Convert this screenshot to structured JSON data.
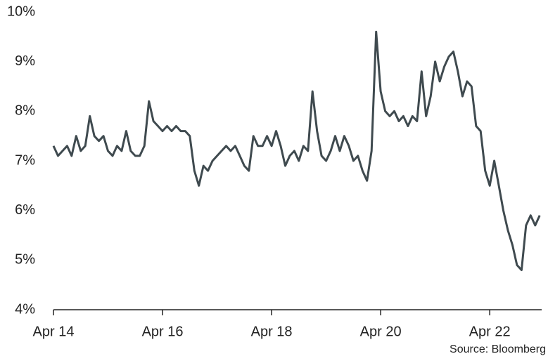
{
  "chart_data": {
    "type": "line",
    "categories": [
      "Apr 14",
      null,
      null,
      null,
      null,
      null,
      null,
      null,
      null,
      null,
      null,
      null,
      null,
      null,
      null,
      null,
      null,
      null,
      null,
      null,
      null,
      null,
      null,
      null,
      "Apr 16",
      null,
      null,
      null,
      null,
      null,
      null,
      null,
      null,
      null,
      null,
      null,
      null,
      null,
      null,
      null,
      null,
      null,
      null,
      null,
      null,
      null,
      null,
      null,
      "Apr 18",
      null,
      null,
      null,
      null,
      null,
      null,
      null,
      null,
      null,
      null,
      null,
      null,
      null,
      null,
      null,
      null,
      null,
      null,
      null,
      null,
      null,
      null,
      null,
      "Apr 20",
      null,
      null,
      null,
      null,
      null,
      null,
      null,
      null,
      null,
      null,
      null,
      null,
      null,
      null,
      null,
      null,
      null,
      null,
      null,
      null,
      null,
      null,
      null,
      "Apr 22",
      null,
      null,
      null,
      null,
      null,
      null,
      null,
      null,
      null,
      null,
      null
    ],
    "values": [
      7.3,
      7.1,
      7.2,
      7.3,
      7.1,
      7.5,
      7.2,
      7.3,
      7.9,
      7.5,
      7.4,
      7.5,
      7.2,
      7.1,
      7.3,
      7.2,
      7.6,
      7.2,
      7.1,
      7.1,
      7.3,
      8.2,
      7.8,
      7.7,
      7.6,
      7.7,
      7.6,
      7.7,
      7.6,
      7.6,
      7.5,
      6.8,
      6.5,
      6.9,
      6.8,
      7.0,
      7.1,
      7.2,
      7.3,
      7.2,
      7.3,
      7.1,
      6.9,
      6.8,
      7.5,
      7.3,
      7.3,
      7.5,
      7.3,
      7.6,
      7.3,
      6.9,
      7.1,
      7.2,
      7.0,
      7.3,
      7.2,
      8.4,
      7.6,
      7.1,
      7.0,
      7.2,
      7.5,
      7.2,
      7.5,
      7.3,
      7.0,
      7.1,
      6.8,
      6.6,
      7.2,
      9.6,
      8.4,
      8.0,
      7.9,
      8.0,
      7.8,
      7.9,
      7.7,
      7.9,
      7.8,
      8.8,
      7.9,
      8.3,
      9.0,
      8.6,
      8.9,
      9.1,
      9.2,
      8.8,
      8.3,
      8.6,
      8.5,
      7.7,
      7.6,
      6.8,
      6.5,
      7.0,
      6.5,
      6.0,
      5.6,
      5.3,
      4.9,
      4.8,
      5.7,
      5.9,
      5.7,
      5.9
    ],
    "color": "#3f4a4f",
    "ylim": [
      4,
      10
    ],
    "yticks": [
      {
        "value": 4,
        "label": "4%"
      },
      {
        "value": 5,
        "label": "5%"
      },
      {
        "value": 6,
        "label": "6%"
      },
      {
        "value": 7,
        "label": "7%"
      },
      {
        "value": 8,
        "label": "8%"
      },
      {
        "value": 9,
        "label": "9%"
      },
      {
        "value": 10,
        "label": "10%"
      }
    ],
    "source": "Source: Bloomberg"
  }
}
